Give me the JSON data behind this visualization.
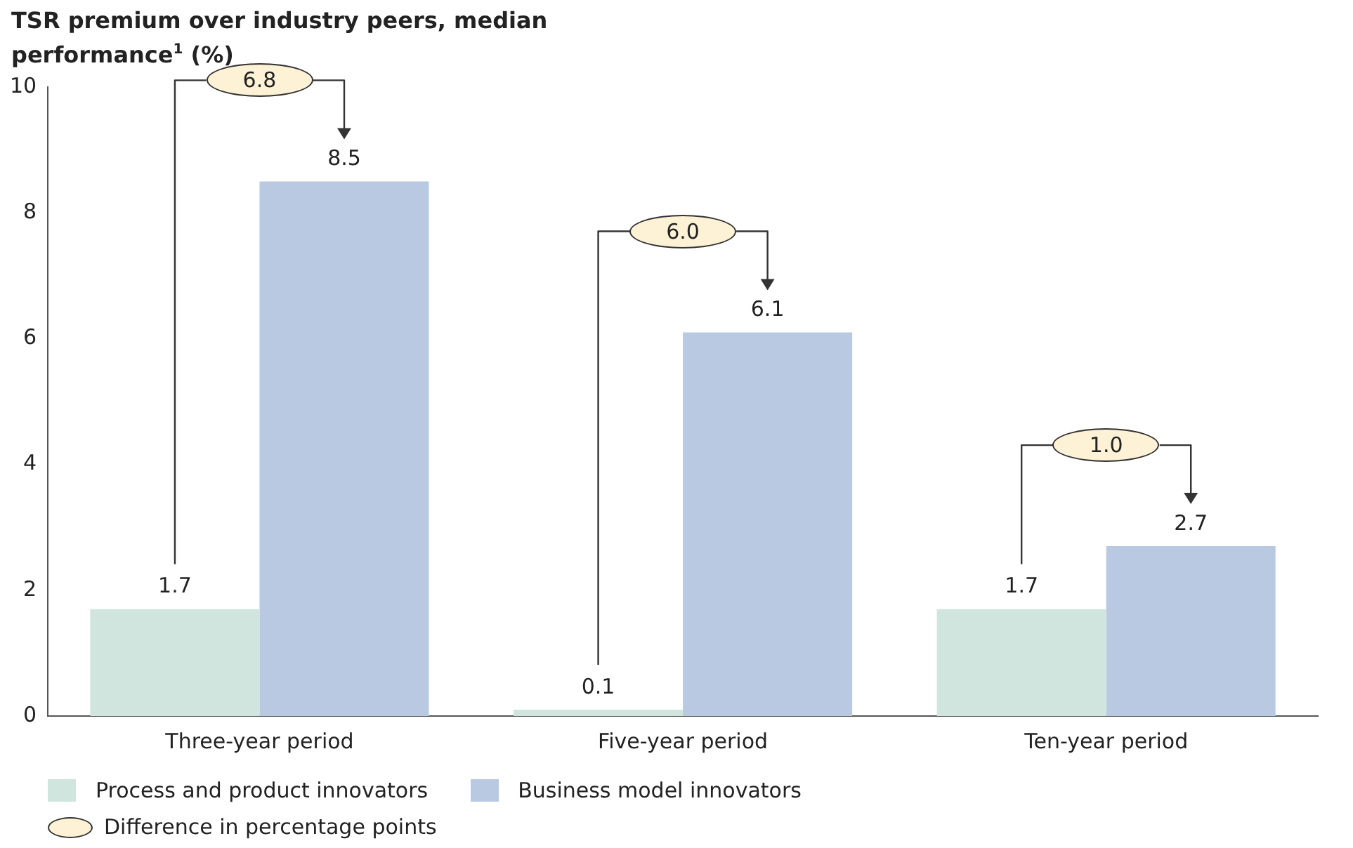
{
  "chart_data": {
    "type": "bar",
    "title": "TSR premium over industry peers, median performance$^{1}$ (%)",
    "categories": [
      "Three-year period",
      "Five-year period",
      "Ten-year period"
    ],
    "series": [
      {
        "name": "Process and product innovators",
        "color": "#cfe5de",
        "values": [
          1.7,
          0.1,
          1.7
        ]
      },
      {
        "name": "Business model innovators",
        "color": "#b9c9e1",
        "values": [
          8.5,
          6.1,
          2.7
        ]
      }
    ],
    "ylim": [
      0,
      10
    ],
    "yticks": [
      0,
      2,
      4,
      6,
      8,
      10
    ],
    "grid": false,
    "data_labels": true,
    "legend": "bottom left",
    "annotations": [
      "6.8",
      "6.0",
      "1.0",
      "Difference in percentage points"
    ]
  }
}
